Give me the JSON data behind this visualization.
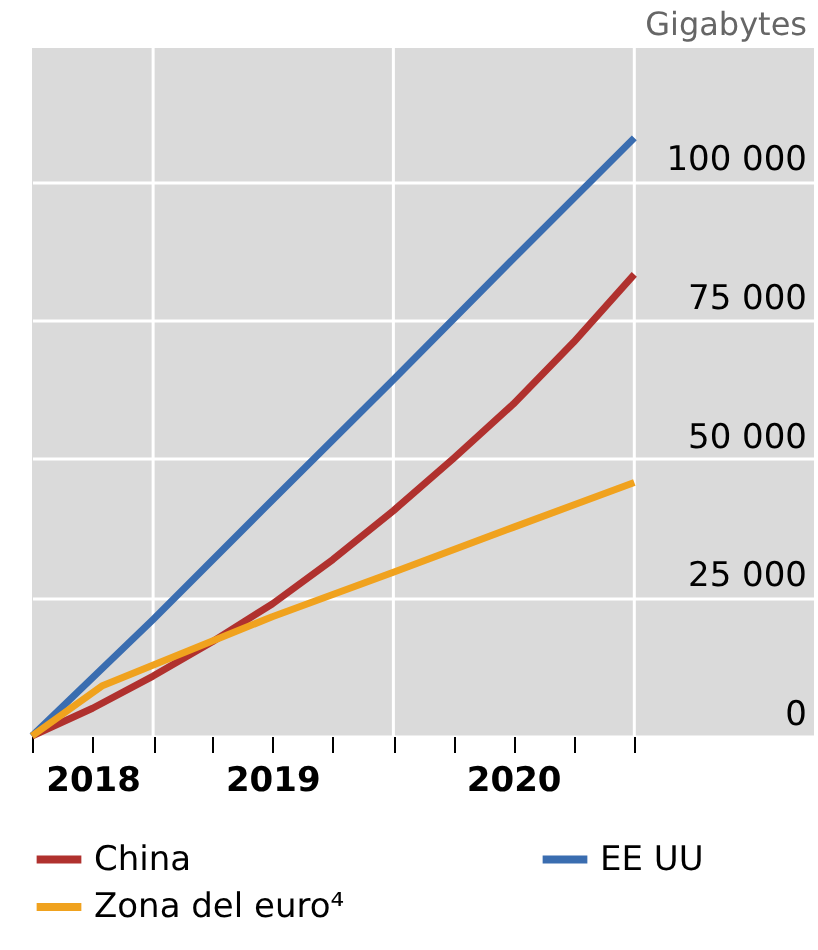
{
  "chart_data": {
    "type": "line",
    "ylabel": "Gigabytes",
    "xlim": [
      "2018-07-01",
      "2021-10-01"
    ],
    "xticks": [
      {
        "value": "2018-07-01",
        "label": null
      },
      {
        "value": "2018-10-01",
        "label": "2018"
      },
      {
        "value": "2019-01-01",
        "label": null
      },
      {
        "value": "2019-04-01",
        "label": null
      },
      {
        "value": "2019-07-01",
        "label": "2019"
      },
      {
        "value": "2019-10-01",
        "label": null
      },
      {
        "value": "2020-01-01",
        "label": null
      },
      {
        "value": "2020-04-01",
        "label": null
      },
      {
        "value": "2020-07-01",
        "label": "2020"
      },
      {
        "value": "2020-10-01",
        "label": null
      },
      {
        "value": "2021-01-01",
        "label": null
      }
    ],
    "ylim": [
      0,
      124000
    ],
    "yticks": [
      {
        "value": 0,
        "label": "0"
      },
      {
        "value": 25000,
        "label": "25 000"
      },
      {
        "value": 50000,
        "label": "50 000"
      },
      {
        "value": 75000,
        "label": "75 000"
      },
      {
        "value": 100000,
        "label": "100 000"
      }
    ],
    "grid": "y",
    "legend": "bottom",
    "marker": "none",
    "line_style": "solid",
    "ref_lines": [
      {
        "axis": "x",
        "value": "2019-01-01",
        "label": null,
        "color": "#ffffff"
      },
      {
        "axis": "x",
        "value": "2020-01-01",
        "label": null,
        "color": "#ffffff"
      },
      {
        "axis": "x",
        "value": "2021-01-01",
        "label": null,
        "color": "#ffffff"
      }
    ],
    "series": [
      {
        "name": "China",
        "color": "#b0312e",
        "x": [
          "2018-07-01",
          "2018-10-01",
          "2019-01-01",
          "2019-04-01",
          "2019-07-01",
          "2019-10-01",
          "2020-01-01",
          "2020-04-01",
          "2020-07-01",
          "2020-10-01",
          "2021-01-01"
        ],
        "values": [
          0,
          5000,
          10800,
          17000,
          23800,
          31800,
          40600,
          50000,
          59800,
          71000,
          83200
        ]
      },
      {
        "name": "EE UU",
        "color": "#3a6db0",
        "x": [
          "2018-07-01",
          "2019-01-01",
          "2019-07-01",
          "2020-01-01",
          "2020-07-01",
          "2021-01-01"
        ],
        "values": [
          0,
          21000,
          42500,
          64200,
          86000,
          107800
        ]
      },
      {
        "name": "Zona del euro⁴",
        "color": "#f0a21e",
        "x": [
          "2018-07-01",
          "2018-10-15",
          "2019-07-01",
          "2020-01-01",
          "2020-07-01",
          "2021-01-01"
        ],
        "values": [
          0,
          9000,
          21500,
          29500,
          37600,
          45700
        ]
      }
    ]
  }
}
